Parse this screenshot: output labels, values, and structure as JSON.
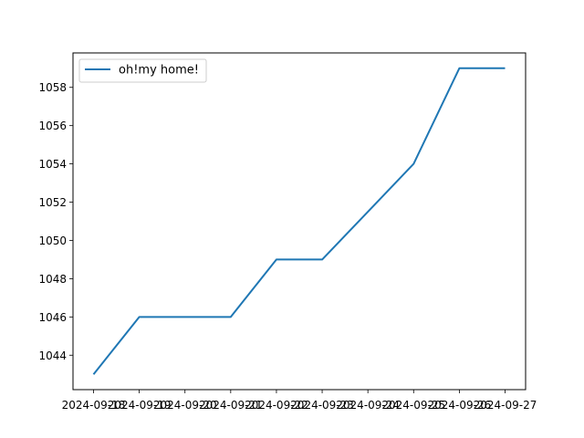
{
  "chart_data": {
    "type": "line",
    "title": "",
    "xlabel": "",
    "ylabel": "",
    "x": [
      "2024-09-18",
      "2024-09-19",
      "2024-09-20",
      "2024-09-21",
      "2024-09-22",
      "2024-09-23",
      "2024-09-24",
      "2024-09-25",
      "2024-09-26",
      "2024-09-27"
    ],
    "series": [
      {
        "name": "oh!my home!",
        "color": "#1f77b4",
        "values": [
          1043,
          1046,
          1046,
          1046,
          1049,
          1049,
          1051.5,
          1054,
          1059,
          1059
        ]
      }
    ],
    "ylim": [
      1042.2,
      1059.8
    ],
    "yticks": [
      1044,
      1046,
      1048,
      1050,
      1052,
      1054,
      1056,
      1058
    ],
    "grid": false,
    "legend_position": "top-left"
  }
}
